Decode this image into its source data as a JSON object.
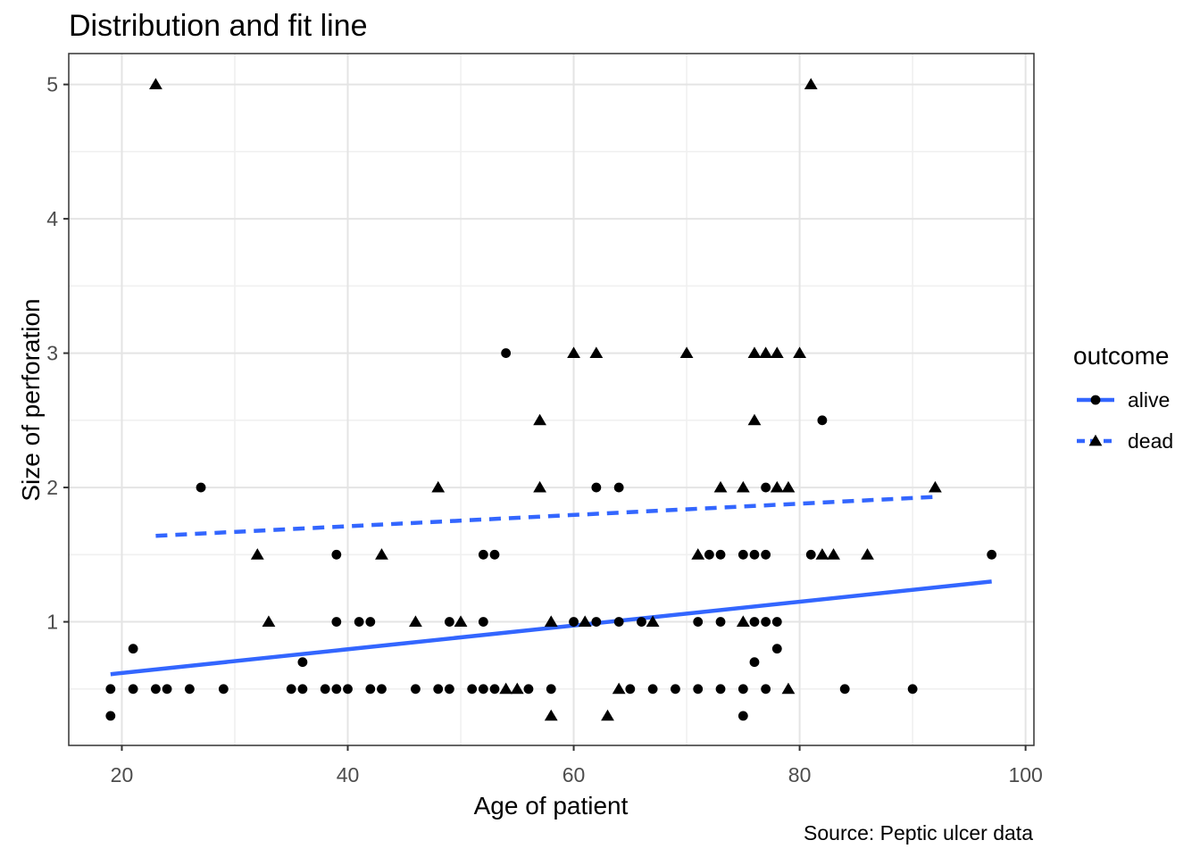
{
  "chart_data": {
    "type": "scatter",
    "title": "Distribution and fit line",
    "xlabel": "Age of patient",
    "ylabel": "Size of perforation",
    "caption": "Source: Peptic ulcer data",
    "xlim": [
      15.3,
      100.74
    ],
    "ylim": [
      0.08,
      5.23
    ],
    "x_ticks": [
      20,
      40,
      60,
      80,
      100
    ],
    "x_minor_ticks": [
      30,
      50,
      70,
      90
    ],
    "y_ticks": [
      1,
      2,
      3,
      4,
      5
    ],
    "y_minor_ticks": [
      0.5,
      1.5,
      2.5,
      3.5,
      4.5
    ],
    "grid": true,
    "legend": {
      "title": "outcome",
      "position": "right",
      "entries": [
        {
          "label": "alive",
          "marker": "circle",
          "linetype": "solid"
        },
        {
          "label": "dead",
          "marker": "triangle",
          "linetype": "dashed"
        }
      ]
    },
    "colors": {
      "fit_line": "#3366FF",
      "points": "#000000",
      "grid_major": "#E4E4E4",
      "grid_minor": "#F0F0F0",
      "panel_border": "#333333",
      "tick_mark": "#333333",
      "axis_text": "#4D4D4D",
      "background": "#FFFFFF"
    },
    "series": [
      {
        "name": "alive",
        "marker": "circle",
        "linetype": "solid",
        "points": [
          [
            19,
            0.3
          ],
          [
            19,
            0.5
          ],
          [
            21,
            0.5
          ],
          [
            21,
            0.8
          ],
          [
            23,
            0.5
          ],
          [
            24,
            0.5
          ],
          [
            26,
            0.5
          ],
          [
            27,
            2
          ],
          [
            29,
            0.5
          ],
          [
            35,
            0.5
          ],
          [
            36,
            0.5
          ],
          [
            36,
            0.7
          ],
          [
            38,
            0.5
          ],
          [
            39,
            0.5
          ],
          [
            39,
            1
          ],
          [
            39,
            1.5
          ],
          [
            40,
            0.5
          ],
          [
            41,
            1
          ],
          [
            42,
            0.5
          ],
          [
            42,
            1
          ],
          [
            43,
            0.5
          ],
          [
            46,
            0.5
          ],
          [
            48,
            0.5
          ],
          [
            49,
            0.5
          ],
          [
            49,
            1
          ],
          [
            51,
            0.5
          ],
          [
            52,
            0.5
          ],
          [
            52,
            1
          ],
          [
            52,
            1.5
          ],
          [
            53,
            0.5
          ],
          [
            53,
            1.5
          ],
          [
            54,
            3
          ],
          [
            56,
            0.5
          ],
          [
            58,
            0.5
          ],
          [
            60,
            1
          ],
          [
            62,
            1
          ],
          [
            62,
            2
          ],
          [
            64,
            1
          ],
          [
            64,
            2
          ],
          [
            65,
            0.5
          ],
          [
            66,
            1
          ],
          [
            67,
            0.5
          ],
          [
            69,
            0.5
          ],
          [
            71,
            0.5
          ],
          [
            71,
            1
          ],
          [
            72,
            1.5
          ],
          [
            73,
            0.5
          ],
          [
            73,
            1
          ],
          [
            73,
            1.5
          ],
          [
            75,
            0.3
          ],
          [
            75,
            0.5
          ],
          [
            75,
            1.5
          ],
          [
            76,
            0.7
          ],
          [
            76,
            1
          ],
          [
            76,
            1.5
          ],
          [
            77,
            0.5
          ],
          [
            77,
            1
          ],
          [
            77,
            1.5
          ],
          [
            77,
            2
          ],
          [
            78,
            0.8
          ],
          [
            78,
            1
          ],
          [
            81,
            1.5
          ],
          [
            82,
            2.5
          ],
          [
            84,
            0.5
          ],
          [
            90,
            0.5
          ],
          [
            97,
            1.5
          ]
        ],
        "fit_line": {
          "x": [
            19,
            97
          ],
          "y": [
            0.61,
            1.3
          ]
        }
      },
      {
        "name": "dead",
        "marker": "triangle",
        "linetype": "dashed",
        "points": [
          [
            23,
            5
          ],
          [
            32,
            1.5
          ],
          [
            33,
            1
          ],
          [
            43,
            1.5
          ],
          [
            46,
            1
          ],
          [
            48,
            2
          ],
          [
            50,
            1
          ],
          [
            54,
            0.5
          ],
          [
            55,
            0.5
          ],
          [
            57,
            2
          ],
          [
            57,
            2.5
          ],
          [
            58,
            0.3
          ],
          [
            58,
            1
          ],
          [
            60,
            3
          ],
          [
            61,
            1
          ],
          [
            62,
            3
          ],
          [
            63,
            0.3
          ],
          [
            64,
            0.5
          ],
          [
            67,
            1
          ],
          [
            70,
            3
          ],
          [
            71,
            1.5
          ],
          [
            73,
            2
          ],
          [
            75,
            1
          ],
          [
            75,
            2
          ],
          [
            76,
            2.5
          ],
          [
            76,
            3
          ],
          [
            77,
            3
          ],
          [
            78,
            2
          ],
          [
            78,
            3
          ],
          [
            79,
            0.5
          ],
          [
            79,
            2
          ],
          [
            80,
            3
          ],
          [
            81,
            5
          ],
          [
            82,
            1.5
          ],
          [
            83,
            1.5
          ],
          [
            86,
            1.5
          ],
          [
            92,
            2
          ]
        ],
        "fit_line": {
          "x": [
            23,
            92
          ],
          "y": [
            1.64,
            1.93
          ]
        }
      }
    ]
  }
}
